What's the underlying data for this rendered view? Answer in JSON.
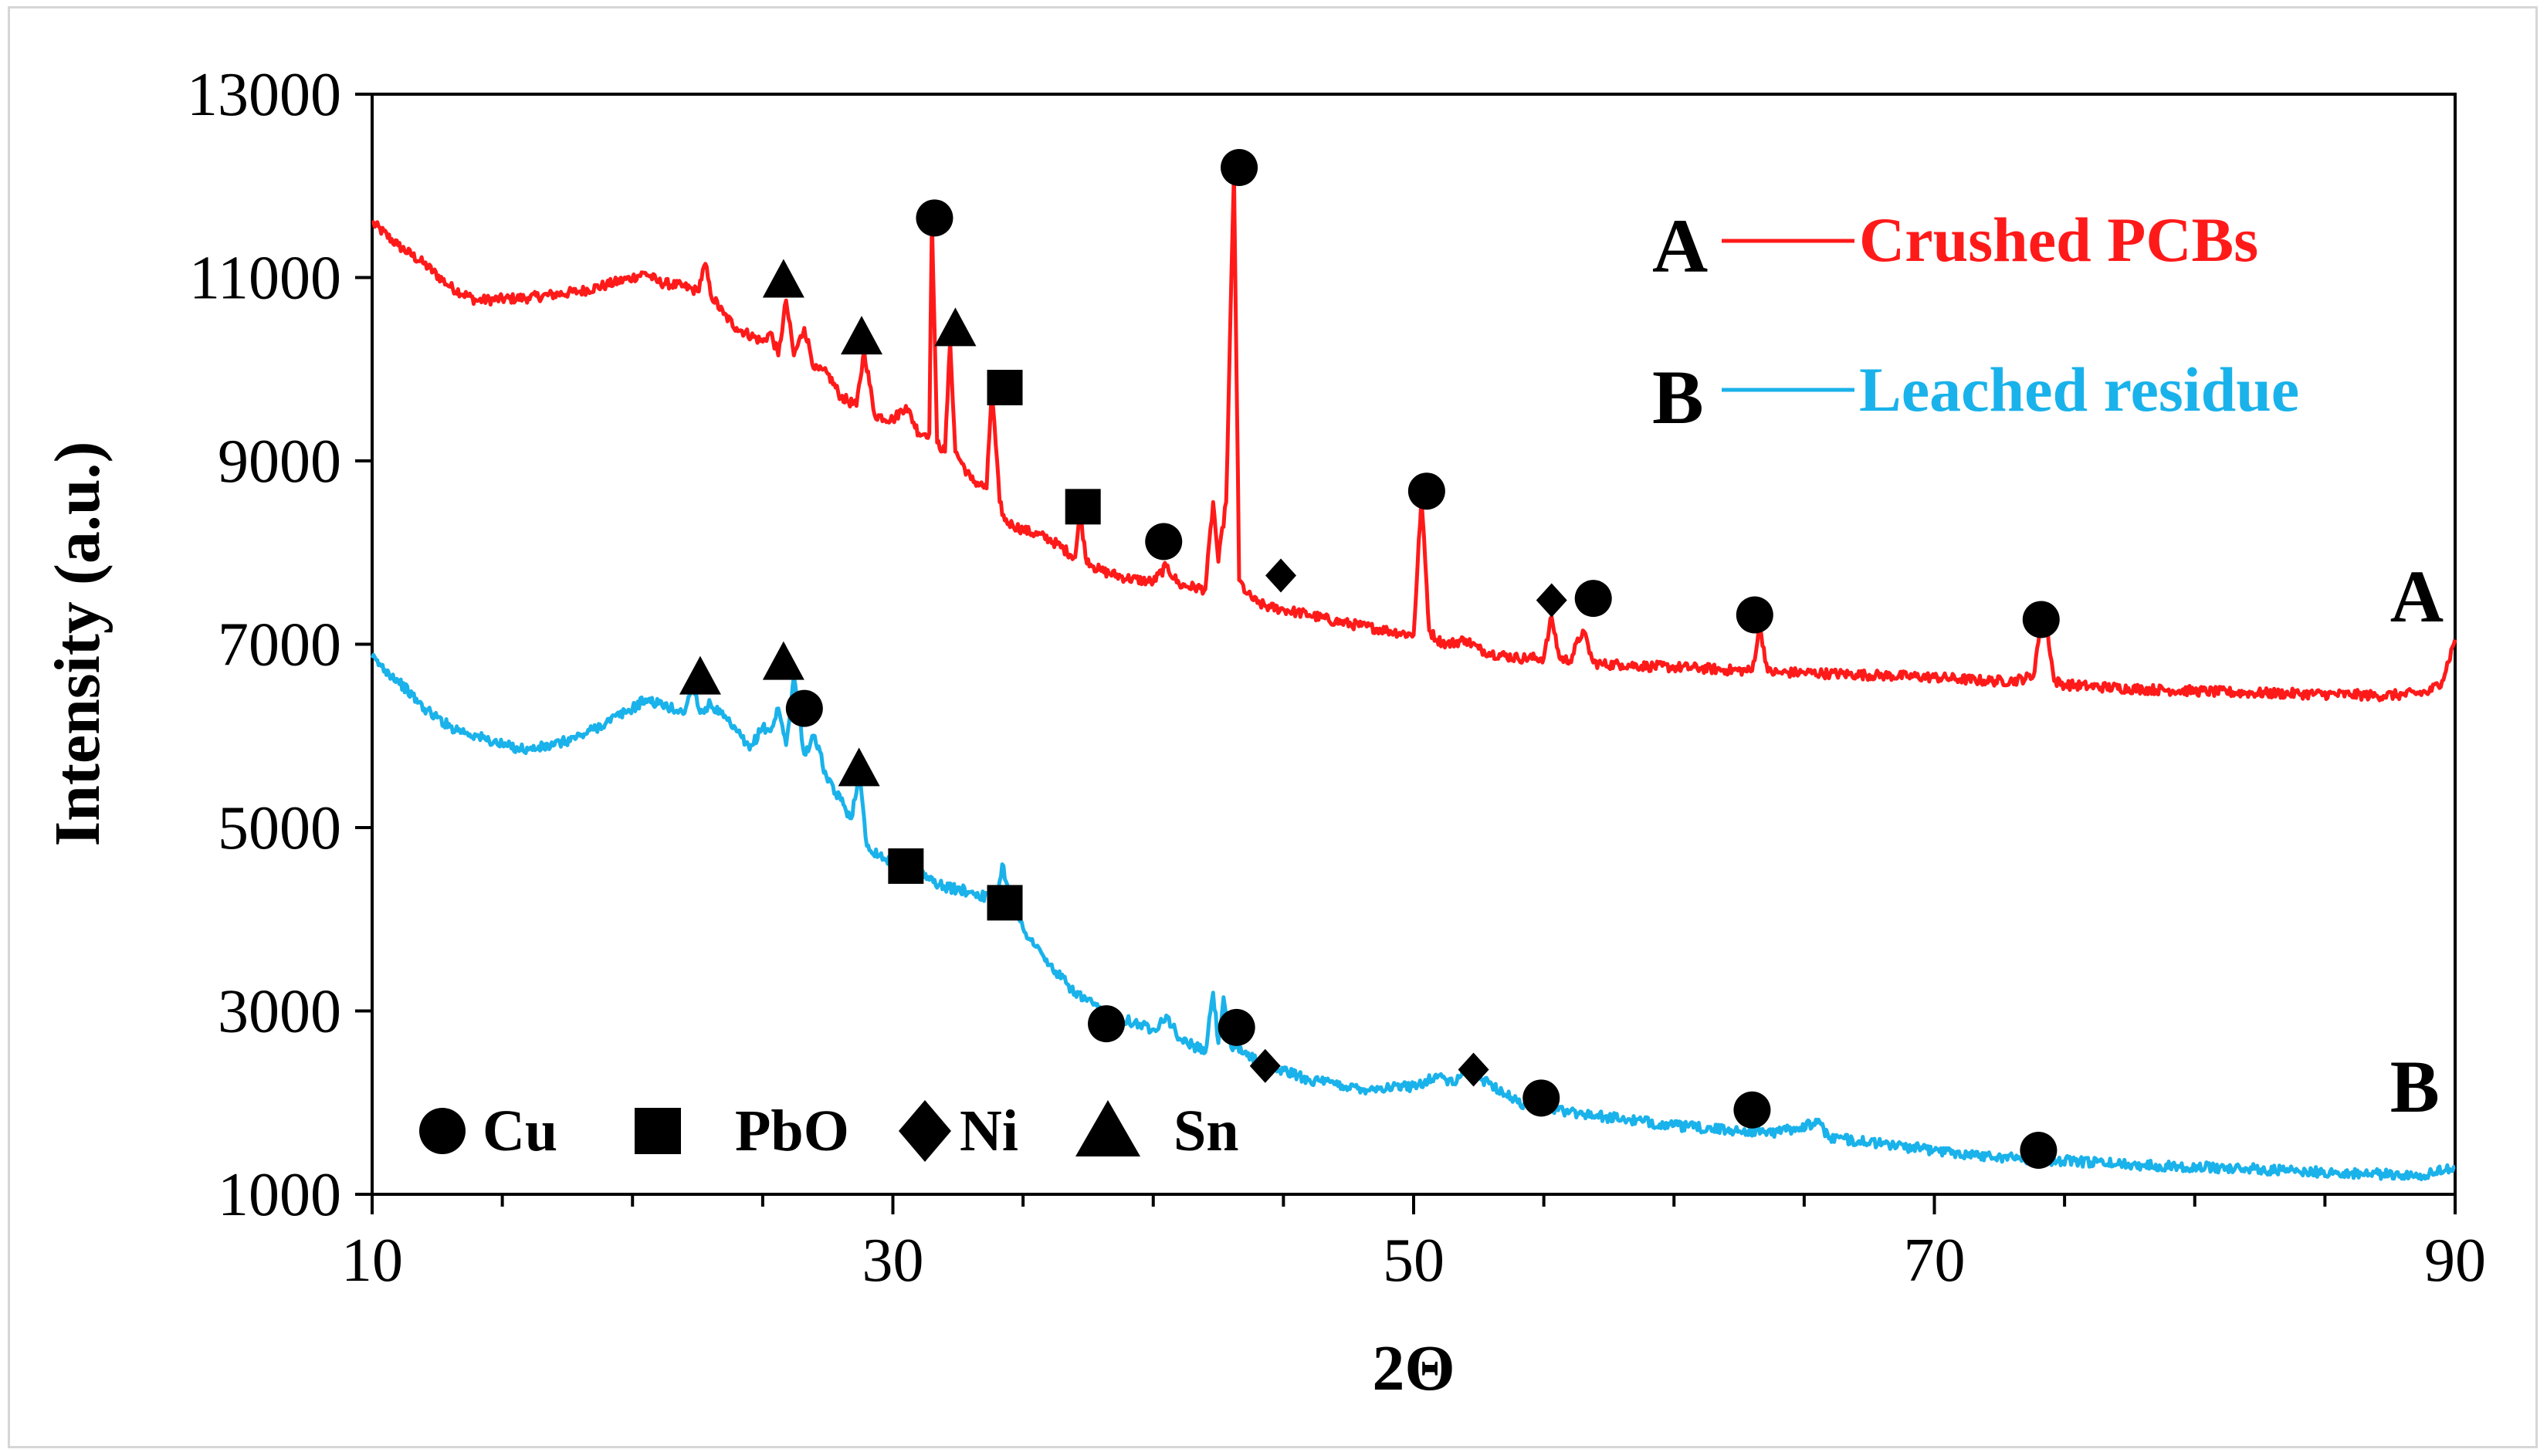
{
  "chart_data": {
    "type": "line",
    "title": "",
    "xlabel": "2Θ",
    "ylabel": "Intensity (a.u.)",
    "xlim": [
      10,
      90
    ],
    "ylim": [
      1000,
      13000
    ],
    "x_ticks": [
      10,
      30,
      50,
      70,
      90
    ],
    "y_ticks": [
      1000,
      3000,
      5000,
      7000,
      9000,
      11000,
      13000
    ],
    "x_tick_labels": [
      "10",
      "30",
      "50",
      "70",
      "90"
    ],
    "y_tick_labels": [
      "1000",
      "3000",
      "5000",
      "7000",
      "9000",
      "11000",
      "13000"
    ],
    "legend": {
      "position": "top-right",
      "entries": [
        {
          "letter": "A",
          "name": "Crushed PCBs",
          "color": "#ff1a1a"
        },
        {
          "letter": "B",
          "name": "Leached residue",
          "color": "#1ab2ea"
        }
      ]
    },
    "series": [
      {
        "name": "Crushed PCBs",
        "label": "A",
        "color": "#ff1a1a",
        "x": [
          10,
          11,
          12,
          13,
          14,
          16,
          18,
          19,
          20,
          20.5,
          21,
          22,
          22.5,
          22.8,
          23,
          23.5,
          24,
          25,
          25.3,
          25.6,
          25.9,
          26.2,
          26.6,
          27,
          27.5,
          28,
          28.6,
          28.9,
          29.3,
          30,
          30.5,
          31,
          31.4,
          31.5,
          31.7,
          32,
          32.2,
          32.4,
          32.6,
          33,
          33.6,
          33.8,
          34.1,
          34.3,
          34.6,
          35,
          36,
          37,
          37.2,
          37.4,
          37.7,
          38,
          39,
          40,
          40.5,
          41,
          42,
          42.3,
          42.5,
          42.8,
          43.1,
          43.3,
          43.6,
          44,
          44.5,
          45,
          45.5,
          46,
          47,
          48,
          49,
          50,
          50.3,
          50.6,
          50.9,
          51.3,
          52,
          52.5,
          53,
          54,
          55,
          55.3,
          55.6,
          56,
          56.5,
          56.9,
          57.3,
          58,
          59,
          60,
          61,
          62,
          63,
          63.3,
          63.6,
          64,
          65,
          66,
          67,
          68,
          69,
          70,
          71,
          72,
          73,
          73.8,
          74.2,
          74.6,
          75,
          76,
          78,
          80,
          82,
          84,
          86,
          87,
          88,
          89,
          89.5,
          90
        ],
        "y": [
          11600,
          11350,
          11150,
          10900,
          10750,
          10780,
          10850,
          10920,
          11000,
          11050,
          10950,
          10900,
          10850,
          11150,
          10820,
          10600,
          10450,
          10300,
          10400,
          10150,
          10750,
          10150,
          10450,
          10000,
          9950,
          9700,
          9600,
          10200,
          9500,
          9450,
          9600,
          9300,
          9300,
          11650,
          9200,
          9100,
          10300,
          9100,
          9000,
          8800,
          8700,
          9800,
          8550,
          8350,
          8300,
          8250,
          8150,
          7950,
          8450,
          7950,
          7850,
          7800,
          7720,
          7680,
          7850,
          7650,
          7600,
          8550,
          7900,
          8550,
          12150,
          7700,
          7550,
          7450,
          7400,
          7380,
          7350,
          7320,
          7250,
          7200,
          7150,
          7100,
          8600,
          7150,
          7050,
          7000,
          7050,
          6950,
          6900,
          6850,
          6850,
          7300,
          6850,
          6820,
          7150,
          6800,
          6780,
          6780,
          6760,
          6750,
          6740,
          6720,
          6710,
          7200,
          6700,
          6690,
          6690,
          6680,
          6670,
          6660,
          6650,
          6640,
          6620,
          6600,
          6600,
          6650,
          7450,
          6600,
          6560,
          6540,
          6510,
          6490,
          6470,
          6460,
          6450,
          6440,
          6450,
          6480,
          6600,
          7050
        ]
      },
      {
        "name": "Leached residue",
        "label": "B",
        "color": "#1ab2ea",
        "x": [
          10,
          11,
          12,
          13,
          14,
          15,
          16,
          17,
          18,
          19,
          20,
          20.5,
          21,
          22,
          22.3,
          22.6,
          23,
          24,
          24.5,
          25,
          25.3,
          25.6,
          25.9,
          26.2,
          26.6,
          27,
          27.5,
          28,
          28.4,
          28.7,
          29,
          29.5,
          30,
          31,
          32,
          33,
          34,
          34.2,
          34.6,
          35,
          36,
          37,
          38,
          39,
          40,
          40.5,
          41,
          42,
          42.3,
          42.5,
          42.7,
          43,
          43.5,
          44,
          45,
          46,
          48,
          50,
          51,
          51.5,
          52,
          53,
          54,
          55,
          56,
          58,
          60,
          62,
          64,
          65.5,
          66,
          68,
          70,
          72,
          74,
          76,
          78,
          80,
          82,
          84,
          86,
          88,
          89,
          90
        ],
        "y": [
          6850,
          6600,
          6300,
          6100,
          6000,
          5900,
          5850,
          5900,
          6000,
          6150,
          6300,
          6400,
          6350,
          6250,
          6600,
          6250,
          6350,
          6050,
          5850,
          6100,
          6050,
          6300,
          5900,
          6650,
          5800,
          6000,
          5500,
          5300,
          5100,
          5600,
          4800,
          4700,
          4600,
          4500,
          4350,
          4300,
          4200,
          4600,
          4150,
          3900,
          3500,
          3200,
          3000,
          2900,
          2800,
          2950,
          2700,
          2550,
          3200,
          2650,
          3150,
          2600,
          2550,
          2450,
          2350,
          2250,
          2150,
          2180,
          2300,
          2200,
          2350,
          2200,
          2000,
          1950,
          1900,
          1820,
          1750,
          1700,
          1680,
          1780,
          1620,
          1550,
          1480,
          1420,
          1380,
          1350,
          1320,
          1300,
          1280,
          1250,
          1230,
          1210,
          1220,
          1300
        ]
      }
    ],
    "phase_markers": [
      {
        "series": "A",
        "phase": "Sn",
        "x": 25.8,
        "y": 10950
      },
      {
        "series": "A",
        "phase": "Sn",
        "x": 28.8,
        "y": 10330
      },
      {
        "series": "A",
        "phase": "Cu",
        "x": 31.6,
        "y": 11650
      },
      {
        "series": "A",
        "phase": "Sn",
        "x": 32.4,
        "y": 10420
      },
      {
        "series": "A",
        "phase": "PbO",
        "x": 34.3,
        "y": 9800
      },
      {
        "series": "A",
        "phase": "PbO",
        "x": 37.3,
        "y": 8500
      },
      {
        "series": "A",
        "phase": "Cu",
        "x": 40.4,
        "y": 8120
      },
      {
        "series": "A",
        "phase": "Cu",
        "x": 43.3,
        "y": 12200
      },
      {
        "series": "A",
        "phase": "Ni",
        "x": 44.9,
        "y": 7750
      },
      {
        "series": "A",
        "phase": "Cu",
        "x": 50.5,
        "y": 8670
      },
      {
        "series": "A",
        "phase": "Ni",
        "x": 55.3,
        "y": 7480
      },
      {
        "series": "A",
        "phase": "Cu",
        "x": 56.9,
        "y": 7500
      },
      {
        "series": "A",
        "phase": "Cu",
        "x": 63.1,
        "y": 7320
      },
      {
        "series": "A",
        "phase": "Cu",
        "x": 74.1,
        "y": 7270
      },
      {
        "series": "B",
        "phase": "Sn",
        "x": 22.6,
        "y": 6620
      },
      {
        "series": "B",
        "phase": "Sn",
        "x": 25.8,
        "y": 6780
      },
      {
        "series": "B",
        "phase": "Cu",
        "x": 26.6,
        "y": 6300
      },
      {
        "series": "B",
        "phase": "Sn",
        "x": 28.7,
        "y": 5620
      },
      {
        "series": "B",
        "phase": "PbO",
        "x": 30.5,
        "y": 4580
      },
      {
        "series": "B",
        "phase": "PbO",
        "x": 34.3,
        "y": 4180
      },
      {
        "series": "B",
        "phase": "Cu",
        "x": 38.2,
        "y": 2860
      },
      {
        "series": "B",
        "phase": "Cu",
        "x": 43.2,
        "y": 2820
      },
      {
        "series": "B",
        "phase": "Ni",
        "x": 44.3,
        "y": 2400
      },
      {
        "series": "B",
        "phase": "Ni",
        "x": 52.3,
        "y": 2360
      },
      {
        "series": "B",
        "phase": "Cu",
        "x": 54.9,
        "y": 2050
      },
      {
        "series": "B",
        "phase": "Cu",
        "x": 63.0,
        "y": 1920
      },
      {
        "series": "B",
        "phase": "Cu",
        "x": 74.0,
        "y": 1480
      }
    ],
    "phase_key": [
      {
        "phase": "Cu",
        "symbol": "circle",
        "label": "Cu"
      },
      {
        "phase": "PbO",
        "symbol": "square",
        "label": "PbO"
      },
      {
        "phase": "Ni",
        "symbol": "diamond",
        "label": "Ni"
      },
      {
        "phase": "Sn",
        "symbol": "triangle",
        "label": "Sn"
      }
    ],
    "curve_labels": [
      {
        "text": "A",
        "x": 87.5,
        "y": 7250
      },
      {
        "text": "B",
        "x": 87.5,
        "y": 1900
      }
    ]
  }
}
